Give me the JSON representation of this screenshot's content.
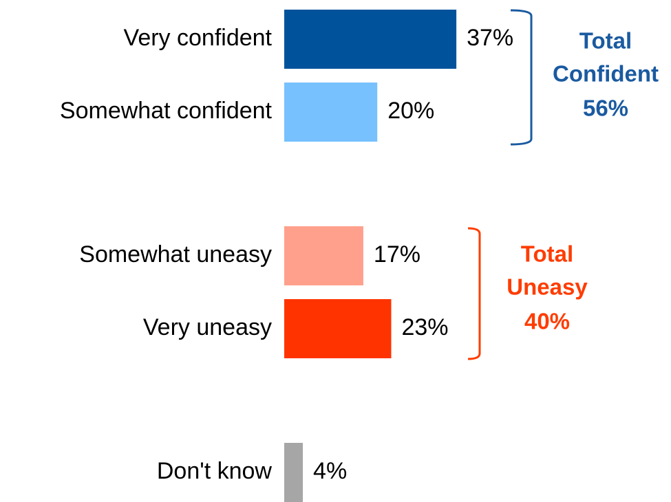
{
  "chart_data": {
    "type": "bar",
    "orientation": "horizontal",
    "categories": [
      "Very confident",
      "Somewhat confident",
      "Somewhat uneasy",
      "Very uneasy",
      "Don't know"
    ],
    "values": [
      37,
      20,
      17,
      23,
      4
    ],
    "value_labels": [
      "37%",
      "20%",
      "17%",
      "23%",
      "4%"
    ],
    "colors": [
      "#00539b",
      "#77c1ff",
      "#ffa08c",
      "#ff3300",
      "#a6a6a6"
    ],
    "xlim": [
      0,
      50
    ],
    "annotations": [
      {
        "text": [
          "Total",
          "Confident",
          "56%"
        ],
        "color": "#1a5aa0"
      },
      {
        "text": [
          "Total",
          "Uneasy",
          "40%"
        ],
        "color": "#ff3c00"
      }
    ]
  }
}
